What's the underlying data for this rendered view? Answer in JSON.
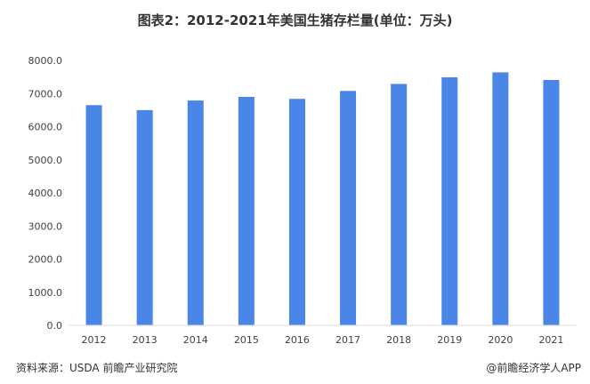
{
  "chart_data": {
    "type": "bar",
    "title": "图表2：2012-2021年美国生猪存栏量(单位：万头)",
    "categories": [
      "2012",
      "2013",
      "2014",
      "2015",
      "2016",
      "2017",
      "2018",
      "2019",
      "2020",
      "2021"
    ],
    "values": [
      6650,
      6500,
      6790,
      6900,
      6840,
      7080,
      7290,
      7490,
      7640,
      7410
    ],
    "yticks": [
      "0.0",
      "1000.0",
      "2000.0",
      "3000.0",
      "4000.0",
      "5000.0",
      "6000.0",
      "7000.0",
      "8000.0"
    ],
    "ylim": [
      0,
      8000
    ],
    "grid": false,
    "bar_color": "#4a86e8"
  },
  "footer": {
    "source": "资料来源：USDA 前瞻产业研究院",
    "brand": "@前瞻经济学人APP"
  }
}
